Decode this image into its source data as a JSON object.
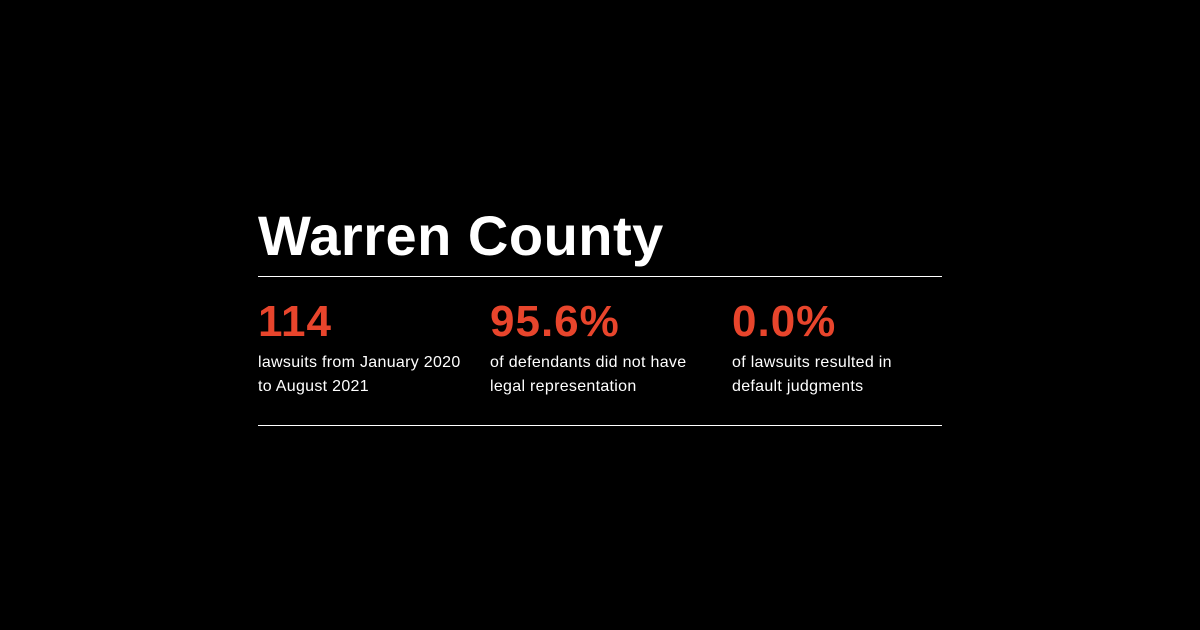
{
  "title": "Warren County",
  "colors": {
    "background": "#000000",
    "accent": "#e8452c",
    "text": "#ffffff"
  },
  "stats": [
    {
      "value": "114",
      "description": "lawsuits from January 2020 to August 2021"
    },
    {
      "value": "95.6%",
      "description": "of defendants did not have legal representation"
    },
    {
      "value": "0.0%",
      "description": "of lawsuits resulted in default judgments"
    }
  ]
}
